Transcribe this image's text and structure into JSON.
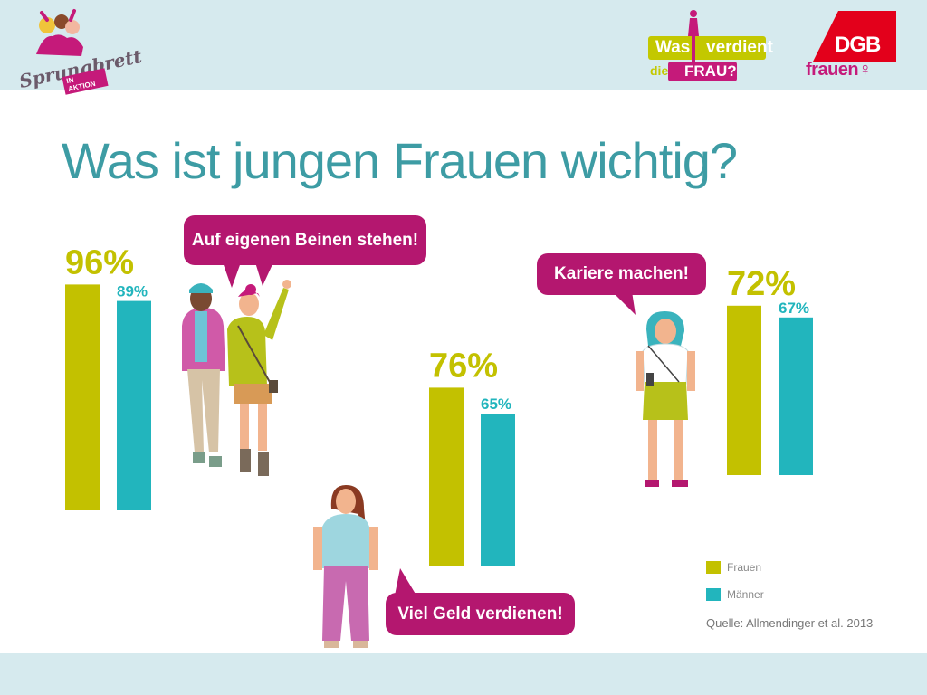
{
  "logos": {
    "sprungbrett": {
      "script": "Sprungbrett",
      "tag": "IN AKTION"
    },
    "was_verdient": {
      "word1": "Was",
      "word2": "verdient",
      "word3": "die",
      "word4": "FRAU?"
    },
    "dgb": {
      "mark": "DGB",
      "sub": "frauen♀"
    }
  },
  "slide": {
    "title": "Was ist jungen Frauen wichtig?"
  },
  "bubbles": {
    "beinen": "Auf eigenen Beinen stehen!",
    "karriere": "Kariere machen!",
    "geld": "Viel Geld verdienen!"
  },
  "legend": {
    "frauen": "Frauen",
    "maenner": "Männer"
  },
  "source": "Quelle: Allmendinger et al. 2013",
  "colors": {
    "frauen": "#c3c100",
    "maenner": "#22b5bd",
    "bubble": "#b4176f",
    "title": "#3d9ca4"
  },
  "chart_data": {
    "type": "bar",
    "categories": [
      "Auf eigenen Beinen stehen!",
      "Viel Geld verdienen!",
      "Kariere machen!"
    ],
    "series": [
      {
        "name": "Frauen",
        "values": [
          96,
          76,
          72
        ],
        "labels": [
          "96%",
          "76%",
          "72%"
        ]
      },
      {
        "name": "Männer",
        "values": [
          89,
          65,
          67
        ],
        "labels": [
          "89%",
          "65%",
          "67%"
        ]
      }
    ],
    "ylim": [
      0,
      100
    ],
    "grid": false,
    "legend": "bottom-right"
  }
}
